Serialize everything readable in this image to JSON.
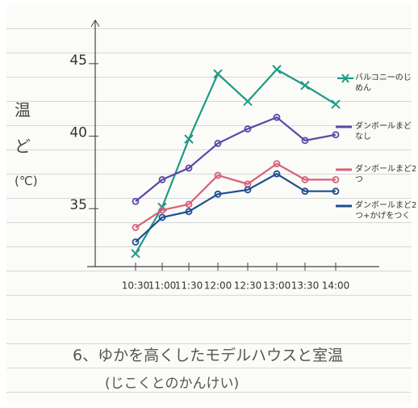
{
  "chart_data": {
    "type": "line",
    "title": "6、ゆかを高くしたモデルハウスと室温",
    "subtitle": "(じこくとのかんけい)",
    "y_label": [
      "温",
      "ど",
      "(℃)"
    ],
    "categories": [
      "10:30",
      "11:00",
      "11:30",
      "12:00",
      "12:30",
      "13:00",
      "13:30",
      "14:00"
    ],
    "ylim": [
      31,
      48
    ],
    "yticks": [
      35,
      40,
      45
    ],
    "series": [
      {
        "name": "バルコニーのじめん",
        "color": "#1e9a86",
        "marker": "x",
        "values": [
          31.9,
          35.1,
          39.8,
          44.3,
          42.4,
          44.6,
          43.5,
          42.2
        ]
      },
      {
        "name": "ダンボールまどなし",
        "color": "#5a4aa8",
        "marker": "o",
        "values": [
          35.5,
          37.0,
          37.8,
          39.5,
          40.5,
          41.3,
          39.7,
          40.1
        ]
      },
      {
        "name": "ダンボールまど2つ",
        "color": "#d9607a",
        "marker": "o",
        "values": [
          33.7,
          34.9,
          35.3,
          37.3,
          36.7,
          38.1,
          37.0,
          37.0
        ]
      },
      {
        "name": "ダンボールまど2つ+かげをつく",
        "color": "#1f4f8f",
        "marker": "o",
        "values": [
          32.7,
          34.4,
          34.8,
          36.0,
          36.3,
          37.4,
          36.2,
          36.2
        ]
      }
    ]
  }
}
